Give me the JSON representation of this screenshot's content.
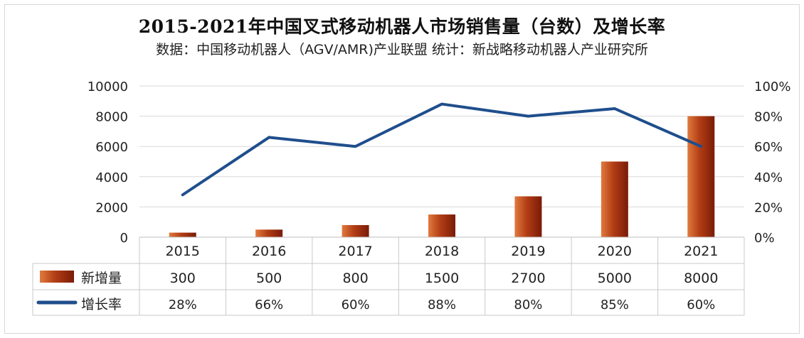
{
  "title": "2015-2021年中国叉式移动机器人市场销售量（台数）及增长率",
  "subtitle": "数据：中国移动机器人（AGV/AMR)产业联盟   统计：新战略移动机器人产业研究所",
  "colors": {
    "bar_dark": "#7a1b08",
    "bar_mid": "#b23d14",
    "bar_light": "#e07a3f",
    "line": "#1f4e8c",
    "grid": "#d9d9d9"
  },
  "chart_data": {
    "type": "bar",
    "categories": [
      "2015",
      "2016",
      "2017",
      "2018",
      "2019",
      "2020",
      "2021"
    ],
    "series": [
      {
        "name": "新增量",
        "type": "bar",
        "axis": "left",
        "values": [
          300,
          500,
          800,
          1500,
          2700,
          5000,
          8000
        ],
        "labels": [
          "300",
          "500",
          "800",
          "1500",
          "2700",
          "5000",
          "8000"
        ]
      },
      {
        "name": "增长率",
        "type": "line",
        "axis": "right",
        "values": [
          28,
          66,
          60,
          88,
          80,
          85,
          60
        ],
        "labels": [
          "28%",
          "66%",
          "60%",
          "88%",
          "80%",
          "85%",
          "60%"
        ]
      }
    ],
    "y_left": {
      "min": 0,
      "max": 10000,
      "ticks": [
        "0",
        "2000",
        "4000",
        "6000",
        "8000",
        "10000"
      ]
    },
    "y_right": {
      "min": 0,
      "max": 100,
      "ticks": [
        "0%",
        "20%",
        "40%",
        "60%",
        "80%",
        "100%"
      ]
    },
    "grid": true,
    "legend": "data-table"
  }
}
